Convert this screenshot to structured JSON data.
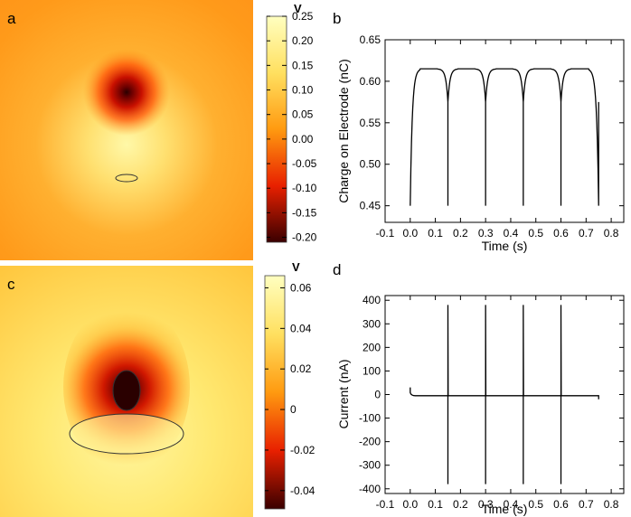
{
  "chart_data": [
    {
      "panel": "a",
      "type": "heatmap",
      "colorbar": {
        "unit": "V",
        "range": [
          -0.21,
          0.25
        ],
        "ticks": [
          "0.25",
          "0.20",
          "0.15",
          "0.10",
          "0.05",
          "0.00",
          "-0.05",
          "-0.10",
          "-0.15",
          "-0.20"
        ],
        "tick_values": [
          0.25,
          0.2,
          0.15,
          0.1,
          0.05,
          0.0,
          -0.05,
          -0.1,
          -0.15,
          -0.2
        ]
      }
    },
    {
      "panel": "b",
      "type": "line",
      "xlabel": "Time (s)",
      "ylabel": "Charge on Electrode (nC)",
      "xlim": [
        -0.1,
        0.85
      ],
      "ylim": [
        0.43,
        0.65
      ],
      "xticks": [
        "-0.1",
        "0.0",
        "0.1",
        "0.2",
        "0.3",
        "0.4",
        "0.5",
        "0.6",
        "0.7",
        "0.8"
      ],
      "xtick_values": [
        -0.1,
        0.0,
        0.1,
        0.2,
        0.3,
        0.4,
        0.5,
        0.6,
        0.7,
        0.8
      ],
      "yticks": [
        "0.45",
        "0.50",
        "0.55",
        "0.60",
        "0.65"
      ],
      "ytick_values": [
        0.45,
        0.5,
        0.55,
        0.6,
        0.65
      ],
      "grid": false,
      "series": [
        {
          "pulses": [
            [
              0.0,
              0.15
            ],
            [
              0.15,
              0.3
            ],
            [
              0.3,
              0.45
            ],
            [
              0.45,
              0.6
            ],
            [
              0.6,
              0.75
            ]
          ],
          "baseline": 0.45,
          "plateau": 0.615,
          "dip_values": [
            0.575,
            0.575,
            0.575,
            0.575
          ]
        }
      ]
    },
    {
      "panel": "c",
      "type": "heatmap",
      "colorbar": {
        "unit": "V",
        "range": [
          -0.049,
          0.066
        ],
        "ticks": [
          "0.06",
          "0.04",
          "0.02",
          "0",
          "-0.02",
          "-0.04"
        ],
        "tick_values": [
          0.06,
          0.04,
          0.02,
          0.0,
          -0.02,
          -0.04
        ]
      }
    },
    {
      "panel": "d",
      "type": "line",
      "xlabel": "Time (s)",
      "ylabel": "Current (nA)",
      "xlim": [
        -0.1,
        0.85
      ],
      "ylim": [
        -420,
        420
      ],
      "xticks": [
        "-0.1",
        "0.0",
        "0.1",
        "0.2",
        "0.3",
        "0.4",
        "0.5",
        "0.6",
        "0.7",
        "0.8"
      ],
      "xtick_values": [
        -0.1,
        0.0,
        0.1,
        0.2,
        0.3,
        0.4,
        0.5,
        0.6,
        0.7,
        0.8
      ],
      "yticks": [
        "400",
        "300",
        "200",
        "100",
        "0",
        "-100",
        "-200",
        "-300",
        "-400"
      ],
      "ytick_values": [
        400,
        300,
        200,
        100,
        0,
        -100,
        -200,
        -300,
        -400
      ],
      "grid": false,
      "series": [
        {
          "start": [
            0.0,
            30
          ],
          "end": 0.75,
          "baseline": -5,
          "spikes": [
            {
              "t": 0.15,
              "min": -380,
              "max": 380
            },
            {
              "t": 0.3,
              "min": -380,
              "max": 380
            },
            {
              "t": 0.45,
              "min": -380,
              "max": 380
            },
            {
              "t": 0.6,
              "min": -380,
              "max": 380
            }
          ]
        }
      ]
    }
  ],
  "labels": {
    "a": "a",
    "b": "b",
    "c": "c",
    "d": "d"
  }
}
